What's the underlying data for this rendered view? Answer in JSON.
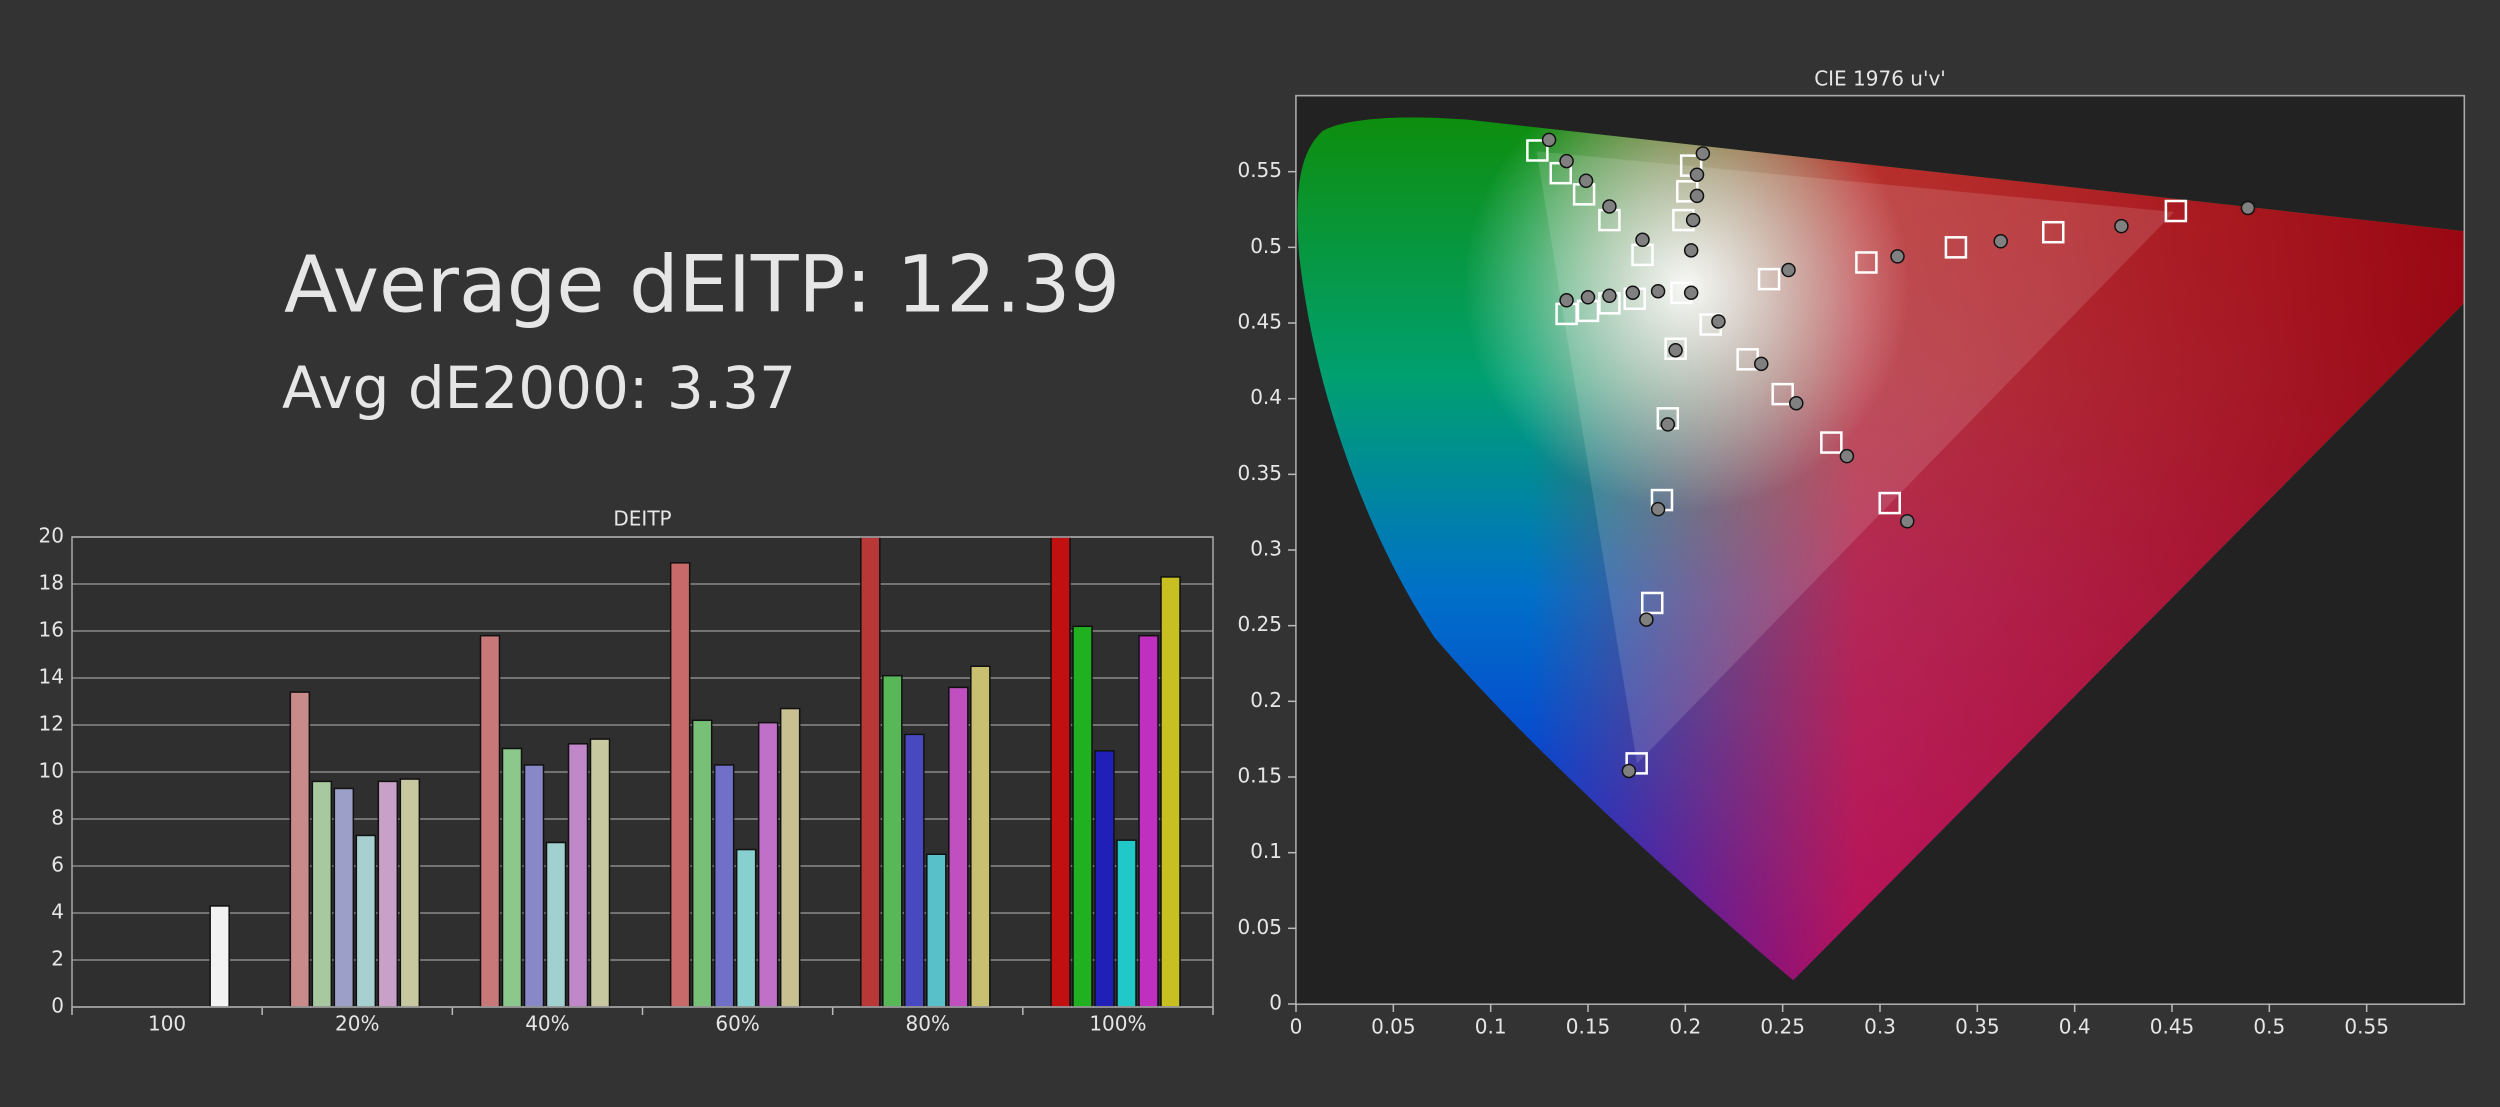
{
  "header": {
    "average_deitp": "Average dEITP: 12.39",
    "avg_de2000": "Avg dE2000: 3.37"
  },
  "chart_data": [
    {
      "type": "bar",
      "title": "DEITP",
      "categories": [
        "100",
        "20%",
        "40%",
        "60%",
        "80%",
        "100%"
      ],
      "ylim": [
        0,
        20
      ],
      "yticks": [
        0,
        2,
        4,
        6,
        8,
        10,
        12,
        14,
        16,
        18,
        20
      ],
      "grid": true,
      "series": [
        {
          "values": [
            4.3,
            null,
            null,
            null,
            null,
            null
          ],
          "colors": [
            "#f2f2f2",
            null,
            null,
            null,
            null,
            null
          ]
        },
        {
          "values": [
            null,
            13.4,
            15.8,
            18.9,
            20,
            20
          ],
          "colors": [
            null,
            "#c98a8a",
            "#c87878",
            "#c86a6a",
            "#b83838",
            "#c01010"
          ]
        },
        {
          "values": [
            null,
            9.6,
            11.0,
            12.2,
            14.1,
            16.2
          ],
          "colors": [
            null,
            "#a8c8a0",
            "#8cc88c",
            "#78c078",
            "#58b858",
            "#20b020"
          ]
        },
        {
          "values": [
            null,
            9.3,
            10.3,
            10.3,
            11.6,
            10.9
          ],
          "colors": [
            null,
            "#9ca0c8",
            "#8888c8",
            "#7070c8",
            "#4848c0",
            "#2020b8"
          ]
        },
        {
          "values": [
            null,
            7.3,
            7.0,
            6.7,
            6.5,
            7.1
          ],
          "colors": [
            null,
            "#a8d0d0",
            "#a0d0d0",
            "#88d0d0",
            "#58c0c8",
            "#20c8c8"
          ]
        },
        {
          "values": [
            null,
            9.6,
            11.2,
            12.1,
            13.6,
            15.8
          ],
          "colors": [
            null,
            "#c8a0c8",
            "#c088c8",
            "#c070c8",
            "#c050c0",
            "#c030c0"
          ]
        },
        {
          "values": [
            null,
            9.7,
            11.4,
            12.7,
            14.5,
            18.3
          ],
          "colors": [
            null,
            "#c8c8a0",
            "#c8c8a0",
            "#c8c090",
            "#c8c070",
            "#c8c020"
          ]
        }
      ]
    },
    {
      "type": "scatter",
      "title": "CIE 1976 u'v'",
      "xlim": [
        0,
        0.6
      ],
      "ylim": [
        0,
        0.6
      ],
      "xticks": [
        0,
        0.05,
        0.1,
        0.15,
        0.2,
        0.25,
        0.3,
        0.35,
        0.4,
        0.45,
        0.5,
        0.55
      ],
      "yticks": [
        0,
        0.05,
        0.1,
        0.15,
        0.2,
        0.25,
        0.3,
        0.35,
        0.4,
        0.45,
        0.5,
        0.55
      ],
      "series": [
        {
          "marker": "square",
          "color": "#ffffff",
          "x": [
            0.124,
            0.136,
            0.148,
            0.161,
            0.178,
            0.198,
            0.203,
            0.201,
            0.199,
            0.174,
            0.161,
            0.15,
            0.139,
            0.213,
            0.195,
            0.232,
            0.25,
            0.275,
            0.305,
            0.191,
            0.188,
            0.183,
            0.175,
            0.243,
            0.293,
            0.339,
            0.389,
            0.452
          ],
          "values": [
            0.564,
            0.549,
            0.535,
            0.518,
            0.495,
            0.47,
            0.554,
            0.537,
            0.518,
            0.466,
            0.463,
            0.458,
            0.456,
            0.449,
            0.433,
            0.426,
            0.403,
            0.371,
            0.331,
            0.387,
            0.333,
            0.265,
            0.159,
            0.479,
            0.49,
            0.5,
            0.51,
            0.524
          ]
        },
        {
          "marker": "circle",
          "color": "#808080",
          "x": [
            0.13,
            0.139,
            0.149,
            0.161,
            0.178,
            0.203,
            0.209,
            0.206,
            0.206,
            0.204,
            0.203,
            0.186,
            0.173,
            0.161,
            0.15,
            0.139,
            0.217,
            0.195,
            0.239,
            0.257,
            0.283,
            0.314,
            0.191,
            0.186,
            0.18,
            0.171,
            0.253,
            0.309,
            0.362,
            0.424,
            0.489
          ],
          "values": [
            0.571,
            0.557,
            0.544,
            0.527,
            0.505,
            0.47,
            0.562,
            0.548,
            0.534,
            0.518,
            0.498,
            0.471,
            0.47,
            0.468,
            0.467,
            0.465,
            0.451,
            0.432,
            0.423,
            0.397,
            0.362,
            0.319,
            0.383,
            0.327,
            0.254,
            0.154,
            0.485,
            0.494,
            0.504,
            0.514,
            0.526
          ]
        }
      ]
    }
  ]
}
